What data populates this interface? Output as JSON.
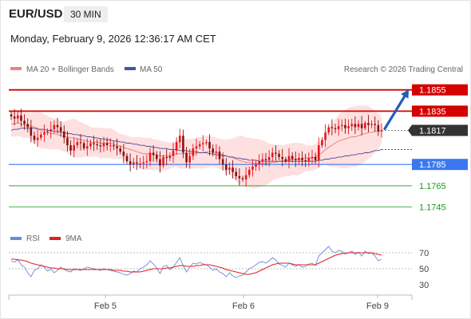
{
  "header": {
    "symbol": "EUR/USD",
    "timeframe": "30 MIN",
    "datetime": "Monday, February 9, 2026 12:36:17 AM CET"
  },
  "legend": {
    "ma20": "MA 20 + Bollinger Bands",
    "ma50": "MA 50",
    "credit": "Research © 2026 Trading Central",
    "rsi": "RSI",
    "rsi_ma": "9MA"
  },
  "colors": {
    "up": "#e8141e",
    "down": "#8a0f0f",
    "ma20": "#f08080",
    "ma50": "#4a4a9a",
    "band": "#fdd5d5",
    "resistance": "#d50000",
    "support": "#3a78f0",
    "target": "#1b9a1b",
    "price_box": "#333333",
    "arrow": "#1f5fb5",
    "rsi_line": "#6a8ad6",
    "rsi_ma_line": "#e02020"
  },
  "chart_data": [
    {
      "type": "candlestick",
      "x_labels": [
        "Feb 5",
        "Feb 6",
        "Feb 9"
      ],
      "ylim": [
        1.1735,
        1.186
      ],
      "current_price": "1.1817",
      "levels": [
        {
          "label": "1.1855",
          "value": 1.1855,
          "kind": "resistance"
        },
        {
          "label": "1.1835",
          "value": 1.1835,
          "kind": "resistance"
        },
        {
          "label": "1.1785",
          "value": 1.1785,
          "kind": "support"
        },
        {
          "label": "1.1765",
          "value": 1.1765,
          "kind": "target"
        },
        {
          "label": "1.1745",
          "value": 1.1745,
          "kind": "target"
        }
      ],
      "close": [
        1.183,
        1.1828,
        1.1831,
        1.1826,
        1.1823,
        1.182,
        1.1812,
        1.1808,
        1.181,
        1.1813,
        1.1815,
        1.1816,
        1.1818,
        1.1822,
        1.182,
        1.1816,
        1.181,
        1.1803,
        1.1798,
        1.1803,
        1.1806,
        1.1805,
        1.18,
        1.1802,
        1.1805,
        1.1804,
        1.1803,
        1.1802,
        1.1805,
        1.1803,
        1.1803,
        1.1802,
        1.18,
        1.1797,
        1.1793,
        1.1788,
        1.1785,
        1.1787,
        1.1786,
        1.1786,
        1.1787,
        1.1788,
        1.1796,
        1.1794,
        1.179,
        1.1784,
        1.1792,
        1.1791,
        1.1793,
        1.1798,
        1.1806,
        1.1812,
        1.1796,
        1.1787,
        1.1793,
        1.18,
        1.1802,
        1.1804,
        1.1805,
        1.1806,
        1.18,
        1.1796,
        1.1797,
        1.179,
        1.1785,
        1.178,
        1.1782,
        1.1778,
        1.1774,
        1.1772,
        1.1771,
        1.1775,
        1.178,
        1.1783,
        1.1785,
        1.1788,
        1.179,
        1.1789,
        1.1792,
        1.1796,
        1.1795,
        1.1792,
        1.179,
        1.1788,
        1.1793,
        1.179,
        1.1789,
        1.1791,
        1.1789,
        1.1788,
        1.1791,
        1.1792,
        1.1789,
        1.1803,
        1.1808,
        1.1815,
        1.182,
        1.1819,
        1.1818,
        1.1821,
        1.1822,
        1.1819,
        1.1821,
        1.1823,
        1.182,
        1.1823,
        1.1819,
        1.1824,
        1.1822,
        1.1823,
        1.1822,
        1.1816,
        1.1817
      ],
      "ma20": [
        1.1823,
        1.1823,
        1.1824,
        1.1823,
        1.1822,
        1.1822,
        1.1821,
        1.182,
        1.1819,
        1.1817,
        1.1816,
        1.1815,
        1.1814,
        1.1814,
        1.1813,
        1.1812,
        1.1811,
        1.1811,
        1.181,
        1.181,
        1.1809,
        1.1808,
        1.1808,
        1.1807,
        1.1806,
        1.1806,
        1.1806,
        1.1805,
        1.1805,
        1.1805,
        1.1805,
        1.1804,
        1.1803,
        1.1802,
        1.1801,
        1.18,
        1.1799,
        1.1798,
        1.1797,
        1.1796,
        1.1795,
        1.1795,
        1.1795,
        1.1794,
        1.1794,
        1.1793,
        1.1793,
        1.1793,
        1.1793,
        1.1794,
        1.1795,
        1.1795,
        1.1795,
        1.1795,
        1.1795,
        1.1795,
        1.1796,
        1.1796,
        1.1796,
        1.1797,
        1.1797,
        1.1797,
        1.1796,
        1.1795,
        1.1794,
        1.1793,
        1.1792,
        1.1791,
        1.179,
        1.1789,
        1.1788,
        1.1787,
        1.1787,
        1.1786,
        1.1786,
        1.1786,
        1.1786,
        1.1786,
        1.1786,
        1.1787,
        1.1787,
        1.1788,
        1.1788,
        1.1789,
        1.1789,
        1.179,
        1.179,
        1.179,
        1.1791,
        1.1791,
        1.1791,
        1.1791,
        1.1792,
        1.1794,
        1.1796,
        1.1799,
        1.1801,
        1.1803,
        1.1805,
        1.1807,
        1.1808,
        1.1809,
        1.181,
        1.1811,
        1.1811,
        1.1812,
        1.1813,
        1.1814,
        1.1815,
        1.1815,
        1.1816,
        1.1816,
        1.1817
      ],
      "ma50": [
        1.1817,
        1.1818,
        1.1818,
        1.1819,
        1.1819,
        1.1819,
        1.1819,
        1.1819,
        1.1818,
        1.1818,
        1.1818,
        1.1817,
        1.1817,
        1.1816,
        1.1816,
        1.1815,
        1.1815,
        1.1814,
        1.1814,
        1.1813,
        1.1813,
        1.1812,
        1.1812,
        1.1811,
        1.1811,
        1.181,
        1.181,
        1.1809,
        1.1809,
        1.1808,
        1.1808,
        1.1807,
        1.1807,
        1.1806,
        1.1806,
        1.1805,
        1.1805,
        1.1804,
        1.1804,
        1.1803,
        1.1803,
        1.1802,
        1.1802,
        1.1801,
        1.1801,
        1.18,
        1.18,
        1.18,
        1.1799,
        1.1799,
        1.1799,
        1.1798,
        1.1798,
        1.1798,
        1.1797,
        1.1797,
        1.1797,
        1.1796,
        1.1796,
        1.1796,
        1.1795,
        1.1795,
        1.1794,
        1.1794,
        1.1793,
        1.1793,
        1.1792,
        1.1792,
        1.1791,
        1.1791,
        1.179,
        1.179,
        1.1789,
        1.1789,
        1.1789,
        1.1788,
        1.1788,
        1.1788,
        1.1788,
        1.1788,
        1.1788,
        1.1788,
        1.1788,
        1.1788,
        1.1788,
        1.1788,
        1.1788,
        1.1788,
        1.1788,
        1.1788,
        1.1788,
        1.1788,
        1.1788,
        1.1789,
        1.1789,
        1.179,
        1.179,
        1.1791,
        1.1791,
        1.1792,
        1.1792,
        1.1793,
        1.1793,
        1.1794,
        1.1794,
        1.1795,
        1.1795,
        1.1796,
        1.1796,
        1.1797,
        1.1798,
        1.1798,
        1.1799
      ]
    },
    {
      "type": "line",
      "name": "RSI",
      "ylim": [
        20,
        80
      ],
      "y_ticks": [
        "70",
        "50",
        "30"
      ],
      "rsi": [
        60,
        58,
        62,
        55,
        52,
        45,
        40,
        48,
        50,
        55,
        52,
        47,
        50,
        45,
        48,
        52,
        49,
        47,
        46,
        50,
        49,
        48,
        50,
        52,
        51,
        50,
        49,
        48,
        50,
        49,
        48,
        47,
        46,
        45,
        43,
        42,
        44,
        47,
        46,
        50,
        52,
        55,
        60,
        56,
        51,
        44,
        53,
        54,
        49,
        52,
        58,
        64,
        54,
        46,
        52,
        57,
        56,
        58,
        56,
        55,
        52,
        48,
        50,
        46,
        44,
        40,
        45,
        41,
        39,
        41,
        42,
        46,
        50,
        52,
        55,
        58,
        59,
        57,
        60,
        64,
        61,
        56,
        54,
        52,
        57,
        55,
        53,
        55,
        52,
        53,
        56,
        57,
        54,
        66,
        70,
        74,
        78,
        72,
        70,
        73,
        72,
        68,
        70,
        72,
        68,
        71,
        66,
        72,
        69,
        70,
        66,
        60,
        62
      ],
      "rsi_ma": [
        62,
        62,
        61,
        61,
        60,
        59,
        57,
        56,
        55,
        54,
        53,
        52,
        51,
        51,
        50,
        50,
        50,
        49,
        49,
        49,
        49,
        49,
        49,
        49,
        49,
        49,
        49,
        49,
        49,
        49,
        49,
        48,
        48,
        48,
        47,
        47,
        46,
        46,
        46,
        46,
        47,
        48,
        49,
        50,
        50,
        50,
        50,
        51,
        51,
        52,
        53,
        54,
        54,
        53,
        53,
        53,
        54,
        54,
        55,
        55,
        55,
        54,
        53,
        52,
        51,
        49,
        48,
        47,
        46,
        45,
        44,
        43,
        43,
        44,
        45,
        47,
        49,
        51,
        53,
        55,
        56,
        57,
        57,
        57,
        57,
        56,
        55,
        55,
        55,
        55,
        55,
        55,
        55,
        57,
        59,
        61,
        63,
        65,
        67,
        68,
        69,
        70,
        70,
        70,
        70,
        70,
        70,
        70,
        70,
        70,
        69,
        68,
        67
      ]
    }
  ]
}
